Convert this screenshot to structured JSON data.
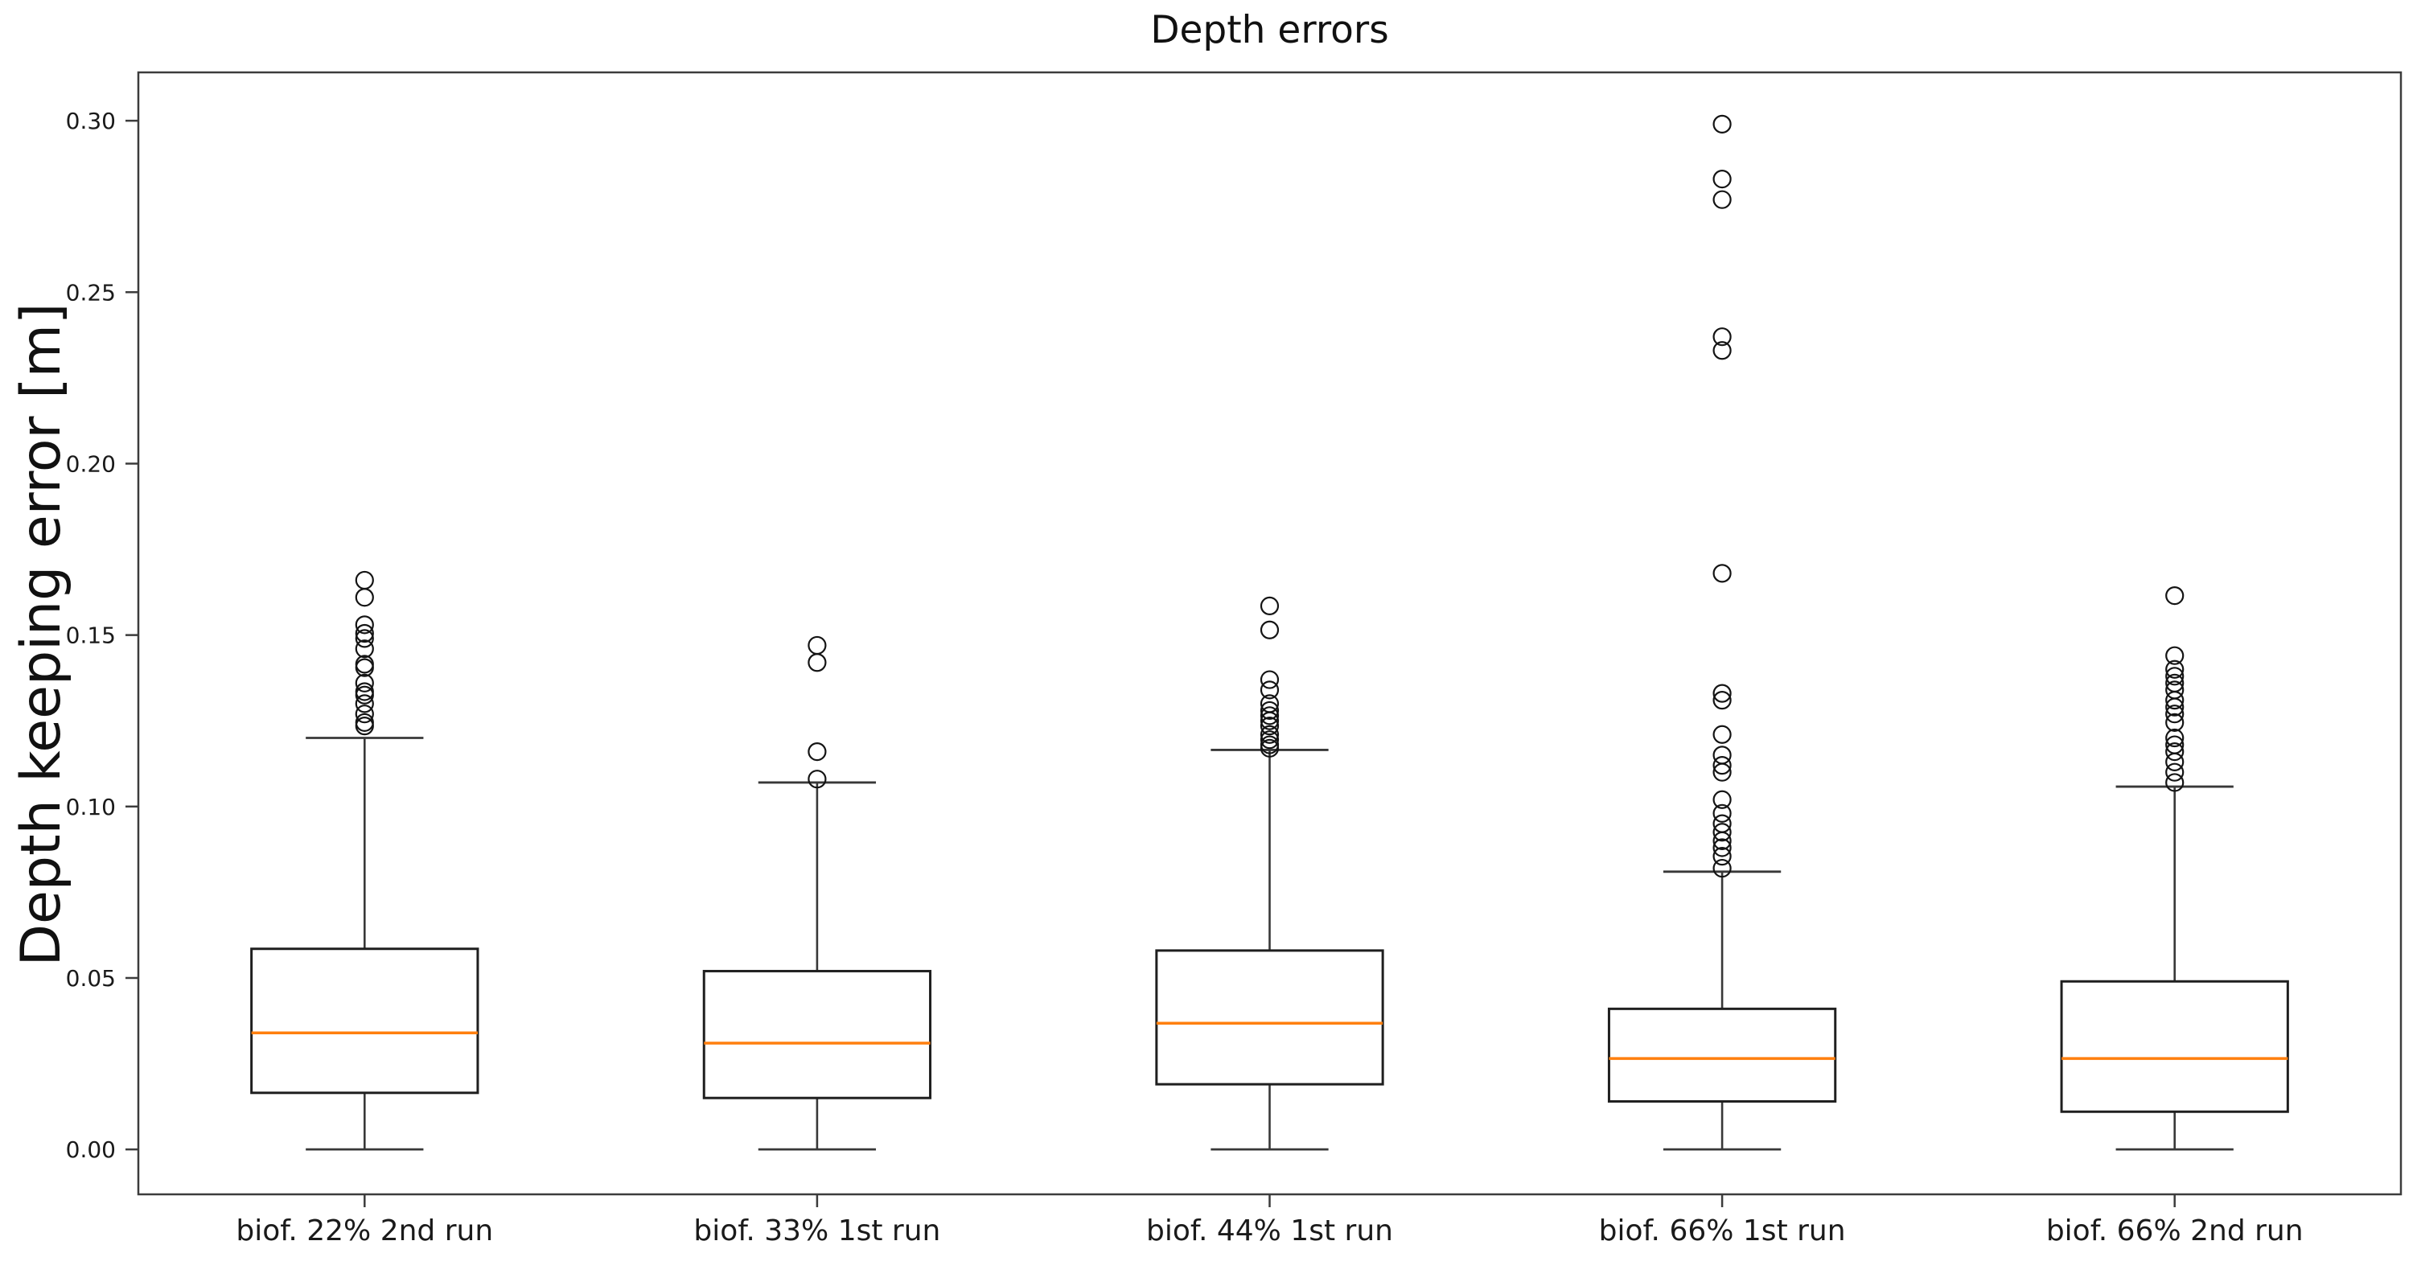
{
  "figure": {
    "title": "Depth errors",
    "ylabel": "Depth keeping error [m]",
    "xlabel": ""
  },
  "chart_data": {
    "type": "boxplot",
    "title": "Depth errors",
    "ylabel": "Depth keeping error [m]",
    "xlabel": "",
    "grid": false,
    "legend": null,
    "ylim": [
      -0.0131,
      0.3141
    ],
    "yticks": [
      0.0,
      0.05,
      0.1,
      0.15,
      0.2,
      0.25,
      0.3
    ],
    "ytick_labels": [
      "0.00",
      "0.05",
      "0.10",
      "0.15",
      "0.20",
      "0.25",
      "0.30"
    ],
    "categories": [
      "biof. 22% 2nd run",
      "biof. 33% 1st run",
      "biof. 44% 1st run",
      "biof. 66% 1st run",
      "biof. 66% 2nd run"
    ],
    "colors": {
      "background": "#ffffff",
      "spine": "#3c3c3c",
      "tick_text": "#1a1a1a",
      "whisker": "#383838",
      "box_edge": "#1f1f1f",
      "median": "#ff7f0e",
      "outlier": "#141414"
    },
    "series": [
      {
        "label": "biof. 22% 2nd run",
        "whisker_low": 0.0,
        "q1": 0.0165,
        "median": 0.034,
        "q3": 0.0585,
        "whisker_high": 0.12,
        "outliers": [
          0.1235,
          0.1245,
          0.127,
          0.13,
          0.1325,
          0.1335,
          0.136,
          0.1405,
          0.1415,
          0.146,
          0.149,
          0.1505,
          0.153,
          0.161,
          0.166
        ]
      },
      {
        "label": "biof. 33% 1st run",
        "whisker_low": 0.0,
        "q1": 0.015,
        "median": 0.031,
        "q3": 0.052,
        "whisker_high": 0.107,
        "outliers": [
          0.108,
          0.116,
          0.142,
          0.147
        ]
      },
      {
        "label": "biof. 44% 1st run",
        "whisker_low": 0.0,
        "q1": 0.019,
        "median": 0.0368,
        "q3": 0.058,
        "whisker_high": 0.1165,
        "outliers": [
          0.117,
          0.118,
          0.1195,
          0.121,
          0.1235,
          0.125,
          0.1265,
          0.128,
          0.13,
          0.134,
          0.137,
          0.1515,
          0.1585
        ]
      },
      {
        "label": "biof. 66% 1st run",
        "whisker_low": 0.0,
        "q1": 0.014,
        "median": 0.0265,
        "q3": 0.041,
        "whisker_high": 0.081,
        "outliers": [
          0.082,
          0.0855,
          0.088,
          0.09,
          0.0925,
          0.095,
          0.098,
          0.102,
          0.11,
          0.112,
          0.115,
          0.121,
          0.131,
          0.133,
          0.168,
          0.233,
          0.237,
          0.277,
          0.283,
          0.299
        ]
      },
      {
        "label": "biof. 66% 2nd run",
        "whisker_low": 0.0,
        "q1": 0.011,
        "median": 0.0265,
        "q3": 0.049,
        "whisker_high": 0.1058,
        "outliers": [
          0.107,
          0.11,
          0.113,
          0.116,
          0.118,
          0.12,
          0.1245,
          0.127,
          0.129,
          0.131,
          0.134,
          0.136,
          0.138,
          0.14,
          0.144,
          0.1615
        ]
      }
    ],
    "layout": {
      "legend_position": "none",
      "box_width_fraction": 0.5,
      "cap_width_fraction": 0.26
    }
  }
}
